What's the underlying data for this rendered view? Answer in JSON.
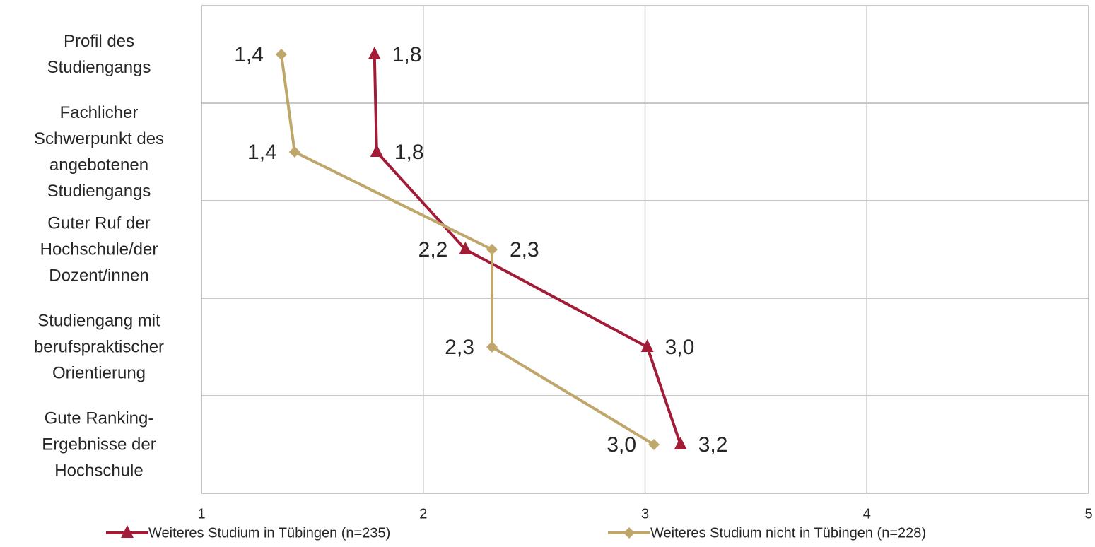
{
  "chart_data": {
    "type": "line",
    "orientation": "horizontal",
    "categories": [
      "Profil des Studiengangs",
      "Fachlicher Schwerpunkt des angebotenen Studiengangs",
      "Guter Ruf der Hochschule/der Dozent/innen",
      "Studiengang mit berufspraktischer Orientierung",
      "Gute Ranking-Ergebnisse der Hochschule"
    ],
    "series": [
      {
        "name": "Weiteres Studium in Tübingen (n=235)",
        "color": "#a31c37",
        "marker": "triangle",
        "values": [
          1.78,
          1.79,
          2.19,
          3.01,
          3.16
        ],
        "value_labels": [
          "1,8",
          "1,8",
          "2,2",
          "3,0",
          "3,2"
        ]
      },
      {
        "name": "Weiteres Studium nicht in Tübingen (n=228)",
        "color": "#bfa66b",
        "marker": "diamond",
        "values": [
          1.36,
          1.42,
          2.31,
          2.31,
          3.04
        ],
        "value_labels": [
          "1,4",
          "1,4",
          "2,3",
          "2,3",
          "3,0"
        ]
      }
    ],
    "xlim": [
      1,
      5
    ],
    "xticks": [
      1,
      2,
      3,
      4,
      5
    ],
    "grid": true,
    "legend": "bottom"
  }
}
